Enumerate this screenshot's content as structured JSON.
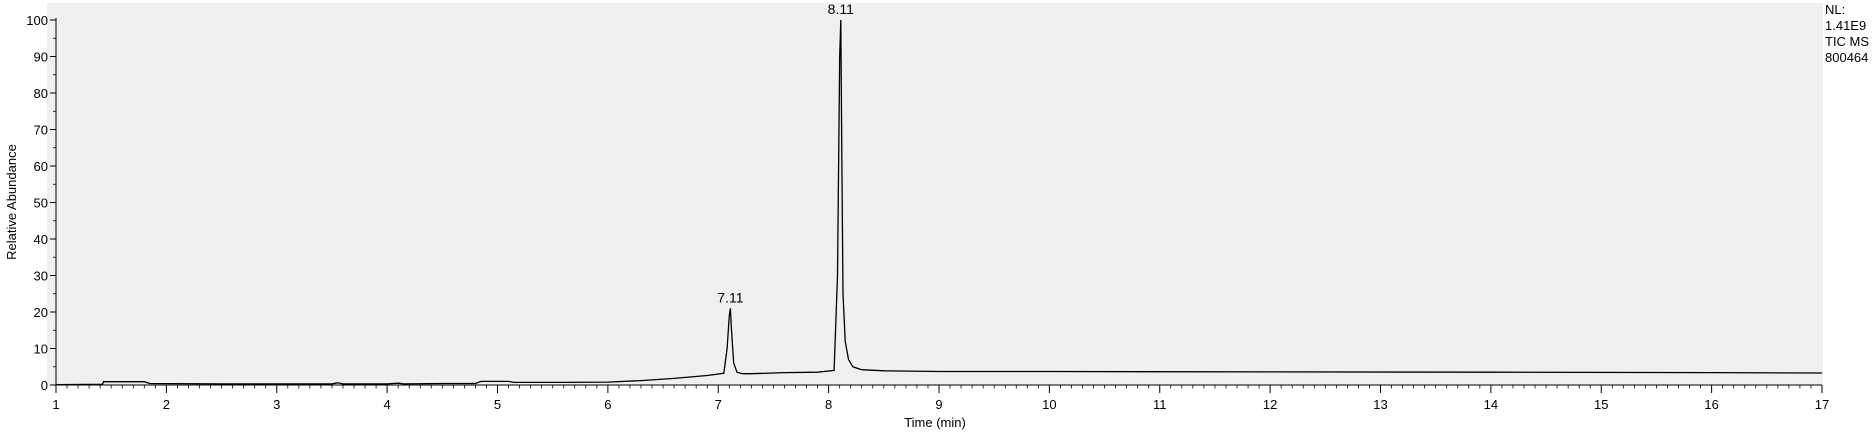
{
  "chart_data": {
    "type": "line",
    "title": "",
    "xlabel": "Time (min)",
    "ylabel": "Relative Abundance",
    "xlim": [
      1,
      17
    ],
    "ylim": [
      0,
      100
    ],
    "grid": false,
    "x_ticks": [
      1,
      2,
      3,
      4,
      5,
      6,
      7,
      8,
      9,
      10,
      11,
      12,
      13,
      14,
      15,
      16,
      17
    ],
    "y_ticks": [
      0,
      10,
      20,
      30,
      40,
      50,
      60,
      70,
      80,
      90,
      100
    ],
    "info_lines": [
      "NL:",
      "1.41E9",
      "TIC  MS",
      "800464"
    ],
    "peak_labels": [
      {
        "x": 7.11,
        "y": 21,
        "text": "7.11"
      },
      {
        "x": 8.11,
        "y": 100,
        "text": "8.11"
      }
    ],
    "series": [
      {
        "x": [
          1.0,
          1.42,
          1.43,
          1.8,
          1.85,
          2.5,
          3.5,
          3.55,
          3.6,
          4.0,
          4.1,
          4.15,
          4.5,
          4.8,
          4.85,
          5.1,
          5.15,
          5.6,
          6.0,
          6.3,
          6.6,
          6.9,
          7.05,
          7.08,
          7.1,
          7.11,
          7.12,
          7.14,
          7.17,
          7.22,
          7.3,
          7.6,
          7.9,
          8.05,
          8.08,
          8.1,
          8.11,
          8.12,
          8.13,
          8.15,
          8.18,
          8.22,
          8.3,
          8.5,
          9.0,
          10.0,
          12.0,
          14.0,
          16.0,
          17.0
        ],
        "y": [
          0.1,
          0.2,
          0.9,
          0.9,
          0.4,
          0.3,
          0.3,
          0.6,
          0.3,
          0.3,
          0.5,
          0.3,
          0.4,
          0.4,
          1.0,
          1.0,
          0.7,
          0.7,
          0.8,
          1.2,
          1.8,
          2.6,
          3.2,
          10.0,
          19.0,
          21.0,
          15.0,
          6.0,
          3.5,
          3.1,
          3.1,
          3.4,
          3.5,
          4.0,
          30.0,
          90.0,
          100.0,
          60.0,
          25.0,
          12.0,
          7.0,
          5.0,
          4.2,
          3.9,
          3.7,
          3.7,
          3.6,
          3.5,
          3.4,
          3.3
        ]
      }
    ]
  }
}
